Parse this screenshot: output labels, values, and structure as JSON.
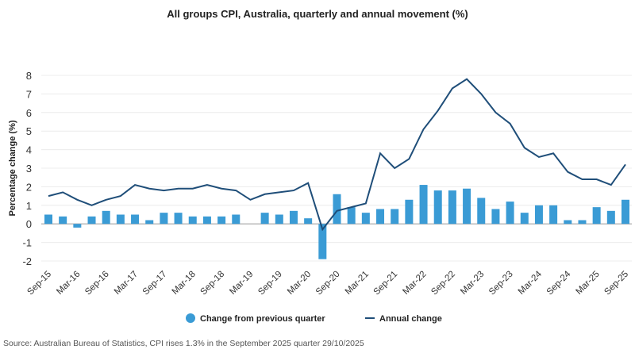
{
  "chart_data": {
    "type": "bar+line",
    "title": "All groups CPI, Australia, quarterly and annual movement (%)",
    "ylabel": "Percentage change (%)",
    "xlabel": "",
    "ylim": [
      -2,
      8
    ],
    "yticks": [
      -2,
      -1,
      0,
      1,
      2,
      3,
      4,
      5,
      6,
      7,
      8
    ],
    "grid": true,
    "legend_placement": "bottom",
    "categories": [
      "Sep-15",
      "Dec-15",
      "Mar-16",
      "Jun-16",
      "Sep-16",
      "Dec-16",
      "Mar-17",
      "Jun-17",
      "Sep-17",
      "Dec-17",
      "Mar-18",
      "Jun-18",
      "Sep-18",
      "Dec-18",
      "Mar-19",
      "Jun-19",
      "Sep-19",
      "Dec-19",
      "Mar-20",
      "Jun-20",
      "Sep-20",
      "Dec-20",
      "Mar-21",
      "Jun-21",
      "Sep-21",
      "Dec-21",
      "Mar-22",
      "Jun-22",
      "Sep-22",
      "Dec-22",
      "Mar-23",
      "Jun-23",
      "Sep-23",
      "Dec-23",
      "Mar-24",
      "Jun-24",
      "Sep-24",
      "Dec-24",
      "Mar-25",
      "Jun-25",
      "Sep-25"
    ],
    "xtick_labels": [
      "Sep-15",
      "Mar-16",
      "Sep-16",
      "Mar-17",
      "Sep-17",
      "Mar-18",
      "Sep-18",
      "Mar-19",
      "Sep-19",
      "Mar-20",
      "Sep-20",
      "Mar-21",
      "Sep-21",
      "Mar-22",
      "Sep-22",
      "Mar-23",
      "Sep-23",
      "Mar-24",
      "Sep-24",
      "Mar-25",
      "Sep-25"
    ],
    "series": [
      {
        "name": "Change from previous quarter",
        "kind": "bar",
        "color": "#3a9bd5",
        "values": [
          0.5,
          0.4,
          -0.2,
          0.4,
          0.7,
          0.5,
          0.5,
          0.2,
          0.6,
          0.6,
          0.4,
          0.4,
          0.4,
          0.5,
          0.0,
          0.6,
          0.5,
          0.7,
          0.3,
          -1.9,
          1.6,
          0.9,
          0.6,
          0.8,
          0.8,
          1.3,
          2.1,
          1.8,
          1.8,
          1.9,
          1.4,
          0.8,
          1.2,
          0.6,
          1.0,
          1.0,
          0.2,
          0.2,
          0.9,
          0.7,
          1.3
        ]
      },
      {
        "name": "Annual change",
        "kind": "line",
        "color": "#1f4e79",
        "values": [
          1.5,
          1.7,
          1.3,
          1.0,
          1.3,
          1.5,
          2.1,
          1.9,
          1.8,
          1.9,
          1.9,
          2.1,
          1.9,
          1.8,
          1.3,
          1.6,
          1.7,
          1.8,
          2.2,
          -0.3,
          0.7,
          0.9,
          1.1,
          3.8,
          3.0,
          3.5,
          5.1,
          6.1,
          7.3,
          7.8,
          7.0,
          6.0,
          5.4,
          4.1,
          3.6,
          3.8,
          2.8,
          2.4,
          2.4,
          2.1,
          3.2
        ]
      }
    ]
  },
  "source": "Source: Australian Bureau of Statistics, CPI rises 1.3% in the September 2025 quarter 29/10/2025"
}
